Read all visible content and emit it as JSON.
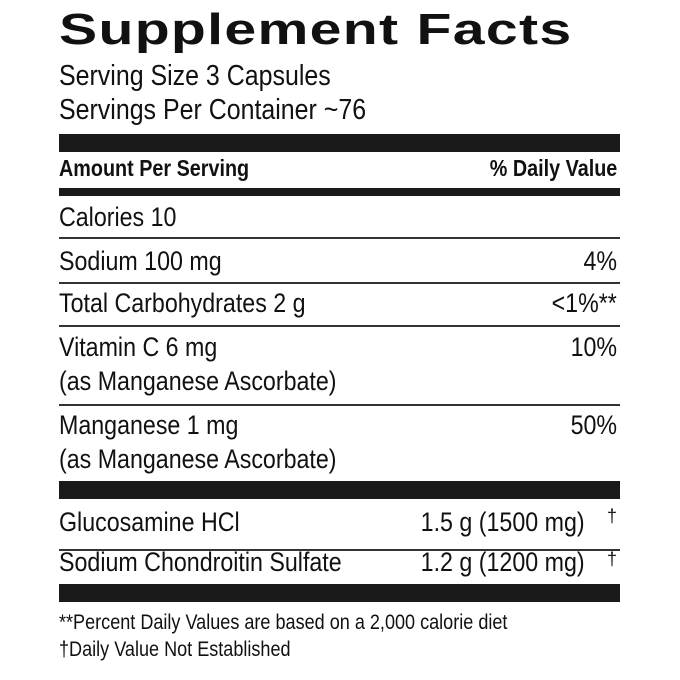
{
  "title": "Supplement Facts",
  "serving_size": "Serving Size 3 Capsules",
  "servings_per_container": "Servings Per Container ~76",
  "header": {
    "amount": "Amount Per Serving",
    "dv": "% Daily Value"
  },
  "nutrients": [
    {
      "name": "Calories  10",
      "sub": "",
      "dv": ""
    },
    {
      "name": "Sodium  100 mg",
      "sub": "",
      "dv": "4%"
    },
    {
      "name": "Total Carbohydrates  2 g",
      "sub": "",
      "dv": "<1%**"
    },
    {
      "name": "Vitamin C  6 mg",
      "sub": "(as Manganese Ascorbate)",
      "dv": "10%"
    },
    {
      "name": "Manganese  1 mg",
      "sub": "(as Manganese Ascorbate)",
      "dv": "50%"
    }
  ],
  "other": [
    {
      "name": "Glucosamine HCl",
      "amount": "1.5 g (1500 mg)",
      "dv": "†"
    },
    {
      "name": "Sodium Chondroitin Sulfate",
      "amount": "1.2 g (1200 mg)",
      "dv": "†"
    }
  ],
  "footnotes": [
    "**Percent Daily Values are based on a 2,000 calorie diet",
    "†Daily Value Not Established"
  ]
}
